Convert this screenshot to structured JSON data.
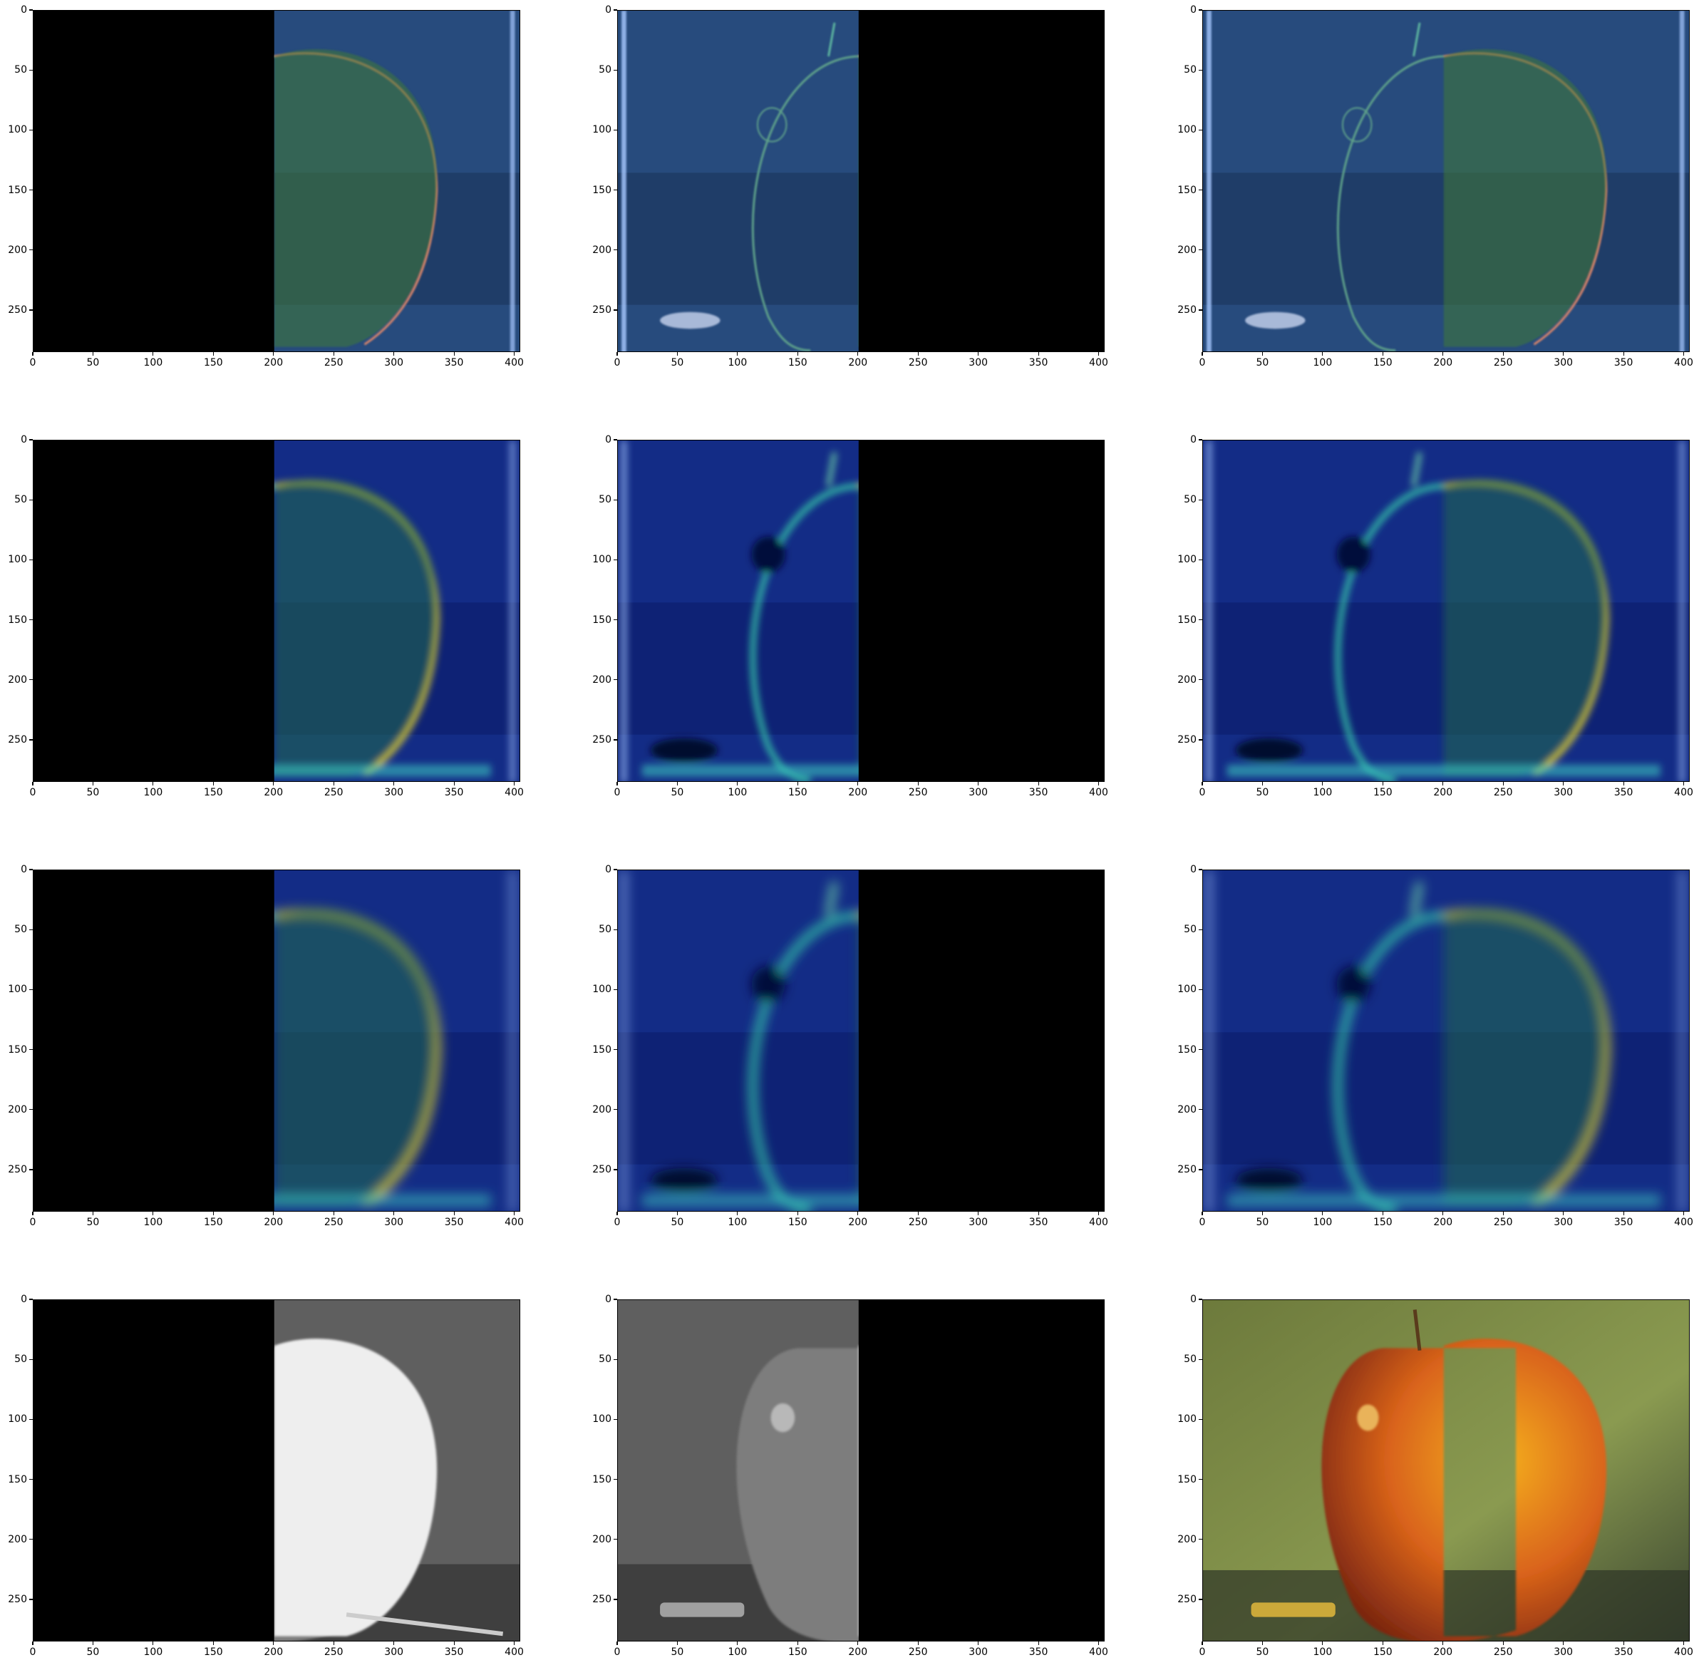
{
  "figure": {
    "x_ticks": [
      "0",
      "50",
      "100",
      "150",
      "200",
      "250",
      "300",
      "350",
      "400"
    ],
    "y_ticks": [
      "0",
      "50",
      "100",
      "150",
      "200",
      "250"
    ]
  },
  "panels": [
    {
      "name": "panel-r1-c1",
      "style": "edge",
      "half": "right"
    },
    {
      "name": "panel-r1-c2",
      "style": "edge",
      "half": "left"
    },
    {
      "name": "panel-r1-c3",
      "style": "edge",
      "half": "full"
    },
    {
      "name": "panel-r2-c1",
      "style": "blur",
      "half": "right"
    },
    {
      "name": "panel-r2-c2",
      "style": "blur",
      "half": "left"
    },
    {
      "name": "panel-r2-c3",
      "style": "blur",
      "half": "full"
    },
    {
      "name": "panel-r3-c1",
      "style": "blur2",
      "half": "right"
    },
    {
      "name": "panel-r3-c2",
      "style": "blur2",
      "half": "left"
    },
    {
      "name": "panel-r3-c3",
      "style": "blur2",
      "half": "full"
    },
    {
      "name": "panel-r4-c1",
      "style": "gray",
      "half": "right"
    },
    {
      "name": "panel-r4-c2",
      "style": "gray",
      "half": "left"
    },
    {
      "name": "panel-r4-c3",
      "style": "color",
      "half": "full"
    }
  ]
}
